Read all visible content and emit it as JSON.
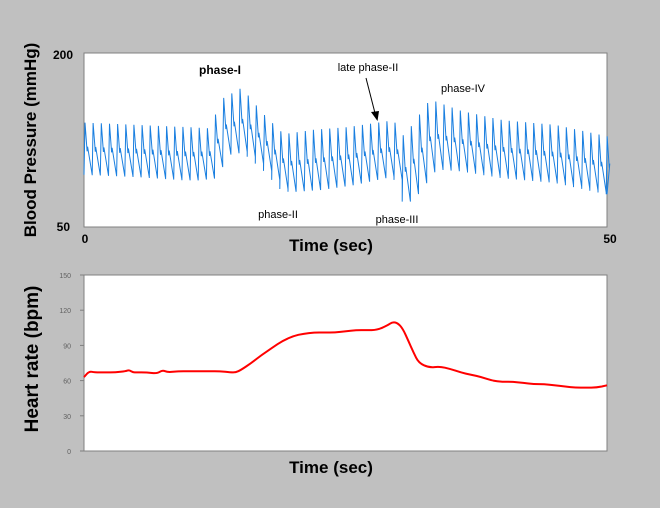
{
  "colors": {
    "background": "#c0c0c0",
    "plot_background": "#ffffff",
    "bp_trace": "#1a7fe0",
    "hr_trace": "#ff0000",
    "axis": "#808080",
    "text": "#000000"
  },
  "chart_data": [
    {
      "type": "line",
      "xlabel": "Time (sec)",
      "ylabel": "Blood Pressure (mmHg)",
      "xlim": [
        0,
        50
      ],
      "ylim": [
        50,
        200
      ],
      "x_ticks": [
        "0",
        "50"
      ],
      "y_ticks": [
        "50",
        "200"
      ],
      "grid": false,
      "series": [
        {
          "color": "#1a7fe0",
          "description_points": {
            "time_sec": [
              0,
              5,
              10,
              12,
              13,
              15,
              17,
              19,
              22,
              25,
              28,
              29.5,
              30.5,
              33,
              36,
              40,
              45,
              50
            ],
            "systolic": [
              140,
              138,
              136,
              135,
              160,
              170,
              148,
              130,
              134,
              136,
              140,
              142,
              128,
              160,
              150,
              142,
              138,
              128
            ],
            "diastolic": [
              95,
              93,
              90,
              92,
              112,
              115,
              100,
              80,
              82,
              86,
              92,
              94,
              70,
              100,
              98,
              92,
              88,
              78
            ]
          }
        }
      ],
      "annotations": [
        {
          "text": "phase-I",
          "x": 13,
          "y": 192
        },
        {
          "text": "phase-II",
          "x": 18,
          "y": 58
        },
        {
          "text": "late phase-II",
          "x": 26.5,
          "y": 193
        },
        {
          "text": "phase-III",
          "x": 30,
          "y": 56
        },
        {
          "text": "phase-IV",
          "x": 36,
          "y": 170
        }
      ]
    },
    {
      "type": "line",
      "xlabel": "Time (sec)",
      "ylabel": "Heart rate (bpm)",
      "xlim": [
        0,
        50
      ],
      "ylim": [
        0,
        150
      ],
      "y_ticks": [
        "0",
        "30",
        "60",
        "90",
        "120",
        "150"
      ],
      "grid": false,
      "series": [
        {
          "color": "#ff0000",
          "x": [
            0,
            0.5,
            1,
            2,
            3,
            4,
            4.3,
            4.7,
            5,
            6,
            7,
            7.5,
            8,
            9,
            10,
            11,
            12,
            13,
            14,
            14.5,
            15,
            16,
            17,
            18,
            19,
            20,
            21,
            22,
            23,
            24,
            25,
            26,
            27,
            28,
            29,
            29.5,
            30,
            30.5,
            31,
            31.5,
            32,
            33,
            34,
            35,
            36,
            37,
            38,
            39,
            40,
            41,
            42,
            43,
            44,
            45,
            46,
            47,
            48,
            49,
            50
          ],
          "values": [
            63,
            68,
            67,
            67,
            67,
            68,
            69,
            67,
            67,
            67,
            66,
            69,
            67,
            68,
            68,
            68,
            68,
            68,
            67,
            67,
            69,
            75,
            82,
            88,
            94,
            98,
            100,
            101,
            101,
            101,
            102,
            103,
            103,
            103,
            107,
            110,
            109,
            104,
            94,
            84,
            75,
            71,
            72,
            70,
            67,
            65,
            63,
            60,
            59,
            59,
            58,
            57,
            57,
            56,
            55,
            54,
            54,
            54,
            56
          ]
        }
      ]
    }
  ]
}
